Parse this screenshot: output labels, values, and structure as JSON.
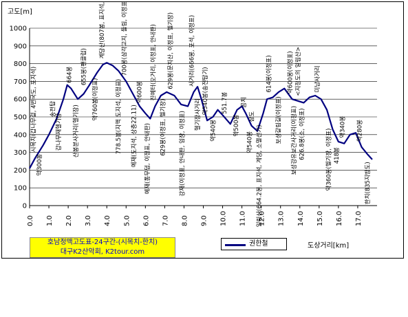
{
  "chart_data": {
    "type": "line",
    "title_line1": "호남정맥고도표-24구간-(시목치-한치)",
    "title_line2": "대구K2산악회, K2tour.com",
    "xlabel": "도상거리[km]",
    "ylabel": "고도[m]",
    "xlim": [
      0,
      18
    ],
    "ylim": [
      0,
      1000
    ],
    "xticks": [
      "0.0",
      "1.0",
      "2.0",
      "3.0",
      "4.0",
      "5.0",
      "6.0",
      "7.0",
      "8.0",
      "9.0",
      "10.0",
      "11.0",
      "12.0",
      "13.0",
      "14.0",
      "15.0",
      "16.0",
      "17.0"
    ],
    "yticks": [
      "0",
      "100",
      "200",
      "300",
      "400",
      "500",
      "600",
      "700",
      "800",
      "900",
      "1000"
    ],
    "series": [
      {
        "name": "권한철",
        "color": "#000080",
        "x": [
          0.0,
          0.3,
          0.7,
          1.0,
          1.4,
          1.75,
          1.95,
          2.15,
          2.5,
          2.8,
          3.1,
          3.5,
          3.8,
          4.0,
          4.3,
          4.6,
          5.0,
          5.4,
          5.7,
          6.0,
          6.25,
          6.5,
          6.8,
          7.1,
          7.5,
          7.85,
          8.2,
          8.5,
          8.7,
          8.9,
          9.2,
          9.5,
          9.75,
          10.0,
          10.4,
          10.75,
          11.0,
          11.2,
          11.5,
          11.8,
          12.1,
          12.3,
          12.6,
          12.9,
          13.2,
          13.6,
          13.9,
          14.2,
          14.5,
          14.8,
          15.1,
          15.4,
          15.7,
          16.0,
          16.3,
          16.6,
          16.9,
          17.2,
          17.5,
          17.75
        ],
        "y": [
          210,
          270,
          340,
          400,
          490,
          600,
          680,
          660,
          600,
          630,
          680,
          750,
          795,
          805,
          790,
          760,
          700,
          620,
          560,
          520,
          490,
          560,
          620,
          640,
          620,
          570,
          560,
          640,
          670,
          600,
          480,
          500,
          540,
          510,
          460,
          540,
          560,
          520,
          450,
          420,
          520,
          600,
          610,
          640,
          660,
          600,
          590,
          580,
          610,
          620,
          600,
          540,
          430,
          360,
          350,
          400,
          410,
          330,
          290,
          260
        ]
      }
    ],
    "annotations": [
      {
        "x": 0.3,
        "text": "시목치(갑나무걸, 4번국도, 포지석)"
      },
      {
        "x": 0.6,
        "text": "약300봉"
      },
      {
        "x": 1.3,
        "text": "송전탑"
      },
      {
        "x": 1.6,
        "text": "갑나무재헬기장"
      },
      {
        "x": 2.15,
        "text": "664봉"
      },
      {
        "x": 2.5,
        "text": "산봉분사거리(헬기장)"
      },
      {
        "x": 2.9,
        "text": "655봉(팬클럽)"
      },
      {
        "x": 3.5,
        "text": "약760봉(이정표)"
      },
      {
        "x": 3.85,
        "text": "계당산(807봉, 표지석, 이정표)"
      },
      {
        "x": 4.7,
        "text": "778.5봉(지맥 도지석, 이정표)"
      },
      {
        "x": 5.0,
        "text": "700봉(삼각고지, 들림, 이정표)"
      },
      {
        "x": 5.5,
        "text": "예재(도지석, 상층22.11)"
      },
      {
        "x": 5.8,
        "text": "약600봉"
      },
      {
        "x": 6.2,
        "text": "예재(통무덤, 이정표, 안내판)"
      },
      {
        "x": 6.5,
        "text": "진예터(오거리, 이정표, 안내판)"
      },
      {
        "x": 7.0,
        "text": "629봉(이정표, 헬기장)"
      },
      {
        "x": 7.4,
        "text": "629봉(문지산, 이정표, 헬기장)"
      },
      {
        "x": 8.0,
        "text": "강재(이정표, 안내판, 임장, 이정표)"
      },
      {
        "x": 8.5,
        "text": "사거리(666봉, 포석, 이정표)"
      },
      {
        "x": 8.8,
        "text": "헬기장사거리"
      },
      {
        "x": 9.2,
        "text": "약540봉(송전탑기)"
      },
      {
        "x": 9.6,
        "text": "약540봉"
      },
      {
        "x": 10.2,
        "text": "551.7봉"
      },
      {
        "x": 10.8,
        "text": "약500봉"
      },
      {
        "x": 11.2,
        "text": "곰치"
      },
      {
        "x": 11.5,
        "text": "약540봉"
      },
      {
        "x": 11.6,
        "text": "삼도"
      },
      {
        "x": 12.0,
        "text": "일림산(664.2봉, 표지석, 계당, 소멸선기)"
      },
      {
        "x": 12.5,
        "text": "614봉(이정표)"
      },
      {
        "x": 13.0,
        "text": "보성갈림길(이정표)"
      },
      {
        "x": 13.6,
        "text": "약600봉(이정표)"
      },
      {
        "x": 13.8,
        "text": "보성강유보간사거리(이정표)"
      },
      {
        "x": 14.0,
        "text": "<지정도의 일림산>"
      },
      {
        "x": 14.2,
        "text": "626.8봉(소, 이정표)"
      },
      {
        "x": 15.0,
        "text": "미남사거리"
      },
      {
        "x": 15.6,
        "text": "약360봉(헬기장, 이정표)"
      },
      {
        "x": 16.3,
        "text": "약340봉"
      },
      {
        "x": 16.0,
        "text": "418봉"
      },
      {
        "x": 17.2,
        "text": "약280봉"
      },
      {
        "x": 17.6,
        "text": "한치(835지방도)"
      }
    ]
  }
}
